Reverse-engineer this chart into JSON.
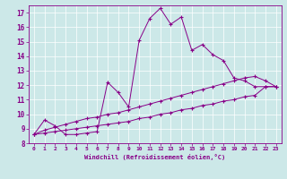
{
  "xlabel": "Windchill (Refroidissement éolien,°C)",
  "bg_color": "#cce8e8",
  "line_color": "#880088",
  "xlim": [
    -0.5,
    23.5
  ],
  "ylim": [
    8,
    17.5
  ],
  "xticks": [
    0,
    1,
    2,
    3,
    4,
    5,
    6,
    7,
    8,
    9,
    10,
    11,
    12,
    13,
    14,
    15,
    16,
    17,
    18,
    19,
    20,
    21,
    22,
    23
  ],
  "yticks": [
    8,
    9,
    10,
    11,
    12,
    13,
    14,
    15,
    16,
    17
  ],
  "line1_x": [
    0,
    1,
    2,
    3,
    4,
    5,
    6,
    7,
    8,
    9,
    10,
    11,
    12,
    13,
    14,
    15,
    16,
    17,
    18,
    19,
    20,
    21,
    22,
    23
  ],
  "line1_y": [
    8.6,
    9.6,
    9.2,
    8.6,
    8.6,
    8.7,
    8.8,
    12.2,
    11.5,
    10.5,
    15.1,
    16.6,
    17.3,
    16.2,
    16.7,
    14.4,
    14.8,
    14.1,
    13.7,
    12.5,
    12.3,
    11.9,
    11.9,
    11.9
  ],
  "line2_x": [
    0,
    1,
    2,
    3,
    4,
    5,
    6,
    7,
    8,
    9,
    10,
    11,
    12,
    13,
    14,
    15,
    16,
    17,
    18,
    19,
    20,
    21,
    22,
    23
  ],
  "line2_y": [
    8.6,
    8.9,
    9.1,
    9.3,
    9.5,
    9.7,
    9.8,
    10.0,
    10.1,
    10.3,
    10.5,
    10.7,
    10.9,
    11.1,
    11.3,
    11.5,
    11.7,
    11.9,
    12.1,
    12.3,
    12.5,
    12.6,
    12.3,
    11.9
  ],
  "line3_x": [
    0,
    1,
    2,
    3,
    4,
    5,
    6,
    7,
    8,
    9,
    10,
    11,
    12,
    13,
    14,
    15,
    16,
    17,
    18,
    19,
    20,
    21,
    22,
    23
  ],
  "line3_y": [
    8.6,
    8.7,
    8.8,
    8.9,
    9.0,
    9.1,
    9.2,
    9.3,
    9.4,
    9.5,
    9.7,
    9.8,
    10.0,
    10.1,
    10.3,
    10.4,
    10.6,
    10.7,
    10.9,
    11.0,
    11.2,
    11.3,
    11.9,
    11.9
  ]
}
